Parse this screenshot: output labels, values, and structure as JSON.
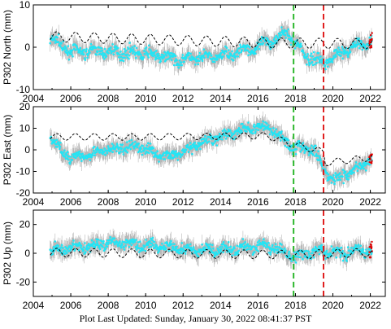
{
  "footer": "Plot Last Updated:   Sunday, January 30, 2022 08:41:37 PST",
  "colors": {
    "data_points": "#22e5f5",
    "error_bars": "#b8b8b8",
    "model": "#000000",
    "latest": "#e00000",
    "equipment_change": "#2db82d",
    "event": "#e02020"
  },
  "chart_data": [
    {
      "type": "scatter",
      "ylabel": "P302 North (mm)",
      "xlim": [
        2004,
        2022.8
      ],
      "ylim": [
        -10,
        10
      ],
      "yticks": [
        -10,
        0,
        10
      ],
      "xticks": [
        2004,
        2006,
        2008,
        2010,
        2012,
        2014,
        2016,
        2018,
        2020,
        2022
      ],
      "xticklabels": [
        "2004",
        "2006",
        "2008",
        "2010",
        "2012",
        "2014",
        "2016",
        "2018",
        "2020",
        "2022"
      ],
      "grid": false,
      "vlines": [
        {
          "x": 2017.9,
          "style": "dashed",
          "color": "green"
        },
        {
          "x": 2019.5,
          "style": "dashed",
          "color": "red"
        }
      ],
      "trend": {
        "x": [
          2004.9,
          2017.0,
          2022.1
        ],
        "y": [
          2.5,
          1.0,
          0.8
        ]
      },
      "seasonal_amplitude": 1.2,
      "data_trace": {
        "x": [
          2004.9,
          2006.0,
          2008.0,
          2010.0,
          2012.0,
          2014.0,
          2016.0,
          2017.6,
          2018.5,
          2019.5,
          2020.5,
          2021.5,
          2022.1
        ],
        "y": [
          2.0,
          -1.0,
          -1.0,
          -1.5,
          -3.0,
          -2.0,
          0.0,
          3.5,
          -2.0,
          -3.5,
          -1.0,
          0.5,
          1.5
        ]
      }
    },
    {
      "type": "scatter",
      "ylabel": "P302 East (mm)",
      "xlim": [
        2004,
        2022.8
      ],
      "ylim": [
        -20,
        20
      ],
      "yticks": [
        -20,
        -10,
        0,
        10,
        20
      ],
      "xticks": [
        2004,
        2006,
        2008,
        2010,
        2012,
        2014,
        2016,
        2018,
        2020,
        2022
      ],
      "xticklabels": [
        "2004",
        "2006",
        "2008",
        "2010",
        "2012",
        "2014",
        "2016",
        "2018",
        "2020",
        "2022"
      ],
      "grid": false,
      "vlines": [
        {
          "x": 2017.9,
          "style": "dashed",
          "color": "green"
        },
        {
          "x": 2019.5,
          "style": "dashed",
          "color": "red"
        }
      ],
      "trend": {
        "x": [
          2004.9,
          2010.0,
          2016.5,
          2017.9,
          2019.5,
          2019.6,
          2022.1
        ],
        "y": [
          6.0,
          6.0,
          6.5,
          2.5,
          -1.0,
          -6.0,
          -3.5
        ]
      },
      "seasonal_amplitude": 1.5,
      "data_trace": {
        "x": [
          2004.9,
          2006.0,
          2007.5,
          2009.5,
          2011.0,
          2012.0,
          2013.5,
          2015.0,
          2016.5,
          2017.9,
          2019.0,
          2019.5,
          2020.0,
          2021.0,
          2022.1
        ],
        "y": [
          5.0,
          -4.0,
          -1.0,
          2.0,
          -3.0,
          -1.0,
          5.0,
          9.0,
          11.0,
          1.0,
          0.0,
          -8.0,
          -14.0,
          -10.0,
          -4.0
        ]
      }
    },
    {
      "type": "scatter",
      "ylabel": "P302 Up (mm)",
      "xlim": [
        2004,
        2022.8
      ],
      "ylim": [
        -30,
        30
      ],
      "yticks": [
        -20,
        0,
        20
      ],
      "xticks": [
        2004,
        2006,
        2008,
        2010,
        2012,
        2014,
        2016,
        2018,
        2020,
        2022
      ],
      "xticklabels": [
        "2004",
        "2006",
        "2008",
        "2010",
        "2012",
        "2014",
        "2016",
        "2018",
        "2020",
        "2022"
      ],
      "grid": false,
      "vlines": [
        {
          "x": 2017.9,
          "style": "dashed",
          "color": "green"
        },
        {
          "x": 2019.5,
          "style": "dashed",
          "color": "red"
        }
      ],
      "trend": {
        "x": [
          2004.9,
          2017.9,
          2022.1
        ],
        "y": [
          0.5,
          -1.0,
          0.5
        ]
      },
      "seasonal_amplitude": 3.0,
      "data_trace": {
        "x": [
          2004.9,
          2006.5,
          2008.5,
          2010.5,
          2012.5,
          2014.5,
          2016.5,
          2017.9,
          2019.5,
          2020.5,
          2022.1
        ],
        "y": [
          2.0,
          4.0,
          8.0,
          5.0,
          2.0,
          3.0,
          5.0,
          -2.0,
          2.0,
          0.0,
          3.0
        ]
      }
    }
  ]
}
